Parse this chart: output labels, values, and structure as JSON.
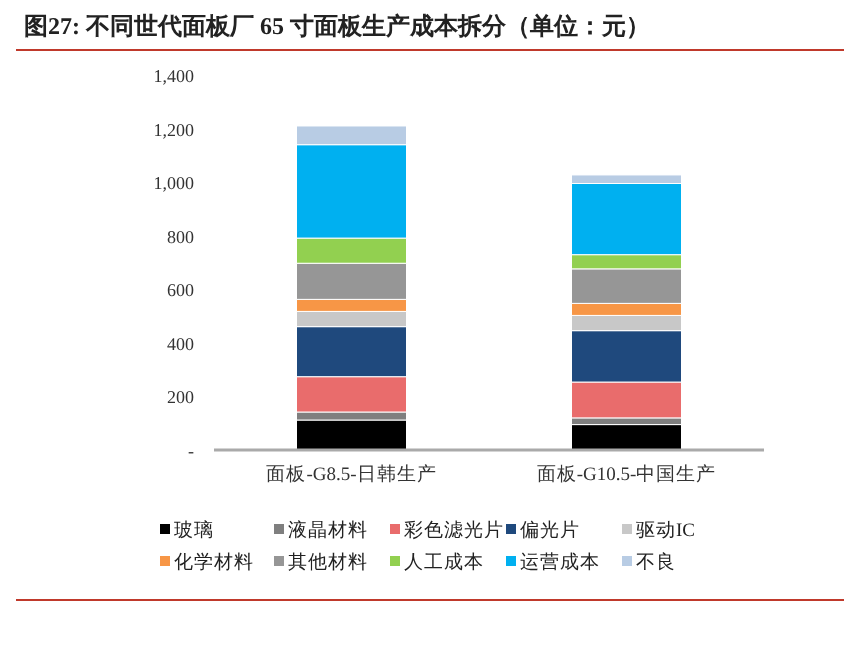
{
  "chart_data": {
    "type": "bar",
    "stacked": true,
    "title": "图27:   不同世代面板厂 65 寸面板生产成本拆分（单位：元）",
    "categories": [
      "面板-G8.5-日韩生产",
      "面板-G10.5-中国生产"
    ],
    "ylim": [
      0,
      1400
    ],
    "yticks": [
      {
        "value": 0,
        "label": "-"
      },
      {
        "value": 200,
        "label": "200"
      },
      {
        "value": 400,
        "label": "400"
      },
      {
        "value": 600,
        "label": "600"
      },
      {
        "value": 800,
        "label": "800"
      },
      {
        "value": 1000,
        "label": "1,000"
      },
      {
        "value": 1200,
        "label": "1,200"
      },
      {
        "value": 1400,
        "label": "1,400"
      }
    ],
    "grid": false,
    "legend": "bottom",
    "series": [
      {
        "name": "玻璃",
        "color": "#000000",
        "values": [
          112,
          95
        ]
      },
      {
        "name": "液晶材料",
        "color": "#7f7f7f",
        "values": [
          30,
          25
        ]
      },
      {
        "name": "彩色滤光片",
        "color": "#e96c6c",
        "values": [
          132,
          134
        ]
      },
      {
        "name": "偏光片",
        "color": "#1f497d",
        "values": [
          187,
          192
        ]
      },
      {
        "name": "驱动IC",
        "color": "#c8c8c8",
        "values": [
          57,
          57
        ]
      },
      {
        "name": "化学材料",
        "color": "#f79646",
        "values": [
          45,
          45
        ]
      },
      {
        "name": "其他材料",
        "color": "#969696",
        "values": [
          135,
          129
        ]
      },
      {
        "name": "人工成本",
        "color": "#92d050",
        "values": [
          94,
          53
        ]
      },
      {
        "name": "运营成本",
        "color": "#00b0f0",
        "values": [
          349,
          266
        ]
      },
      {
        "name": "不良",
        "color": "#b8cce4",
        "values": [
          70,
          32
        ]
      }
    ]
  }
}
